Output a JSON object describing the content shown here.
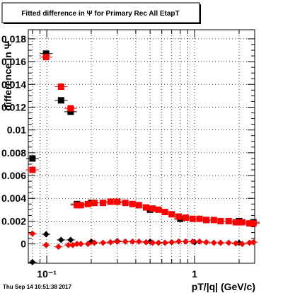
{
  "chart_data": {
    "type": "scatter",
    "title": "Fitted difference in Ψ  for Primary Rec All EtapT",
    "xlabel": "pT/|q| (GeV/c)",
    "ylabel": "difference in Ψ",
    "x_scale": "log",
    "xlim": [
      0.075,
      2.55
    ],
    "ylim": [
      -0.0017,
      0.0188
    ],
    "grid": true,
    "x_tick_labels": [
      {
        "value": 0.1,
        "label": "10⁻¹"
      },
      {
        "value": 1,
        "label": "1"
      }
    ],
    "y_tick_labels": [
      {
        "value": 0,
        "label": "0"
      },
      {
        "value": 0.002,
        "label": "0.002"
      },
      {
        "value": 0.004,
        "label": "0.004"
      },
      {
        "value": 0.006,
        "label": "0.006"
      },
      {
        "value": 0.008,
        "label": "0.008"
      },
      {
        "value": 0.01,
        "label": "0.01"
      },
      {
        "value": 0.012,
        "label": "0.012"
      },
      {
        "value": 0.014,
        "label": "0.014"
      },
      {
        "value": 0.016,
        "label": "0.016"
      },
      {
        "value": 0.018,
        "label": "0.018"
      }
    ],
    "series": [
      {
        "color": "#000000",
        "marker": "square",
        "points": [
          [
            0.08,
            0.0075
          ],
          [
            0.099,
            0.0167
          ],
          [
            0.125,
            0.0126
          ],
          [
            0.145,
            0.0116
          ],
          [
            0.16,
            0.0035
          ],
          [
            0.2,
            0.0036
          ],
          [
            0.3,
            0.0037
          ],
          [
            0.5,
            0.003
          ],
          [
            0.8,
            0.0022
          ],
          [
            1.2,
            0.0021
          ],
          [
            2.0,
            0.002
          ],
          [
            2.5,
            0.0019
          ]
        ]
      },
      {
        "color": "#000000",
        "marker": "diamond",
        "points": [
          [
            0.08,
            -0.0016
          ],
          [
            0.099,
            0.00085
          ],
          [
            0.125,
            0.00035
          ],
          [
            0.145,
            0.00035
          ],
          [
            0.2,
            0.0002
          ],
          [
            0.3,
            0.00025
          ],
          [
            0.5,
            0.0002
          ],
          [
            1.0,
            0.00015
          ],
          [
            2.0,
            0.0001
          ]
        ]
      },
      {
        "color": "#ff0000",
        "marker": "square",
        "points": [
          [
            0.08,
            0.0065
          ],
          [
            0.099,
            0.0164
          ],
          [
            0.125,
            0.0138
          ],
          [
            0.145,
            0.0119
          ],
          [
            0.16,
            0.0034
          ],
          [
            0.17,
            0.0034
          ],
          [
            0.19,
            0.0035
          ],
          [
            0.21,
            0.0036
          ],
          [
            0.24,
            0.0036
          ],
          [
            0.27,
            0.0037
          ],
          [
            0.3,
            0.0037
          ],
          [
            0.34,
            0.0036
          ],
          [
            0.38,
            0.0035
          ],
          [
            0.42,
            0.0034
          ],
          [
            0.47,
            0.0032
          ],
          [
            0.52,
            0.0031
          ],
          [
            0.57,
            0.003
          ],
          [
            0.63,
            0.0028
          ],
          [
            0.7,
            0.0026
          ],
          [
            0.78,
            0.0024
          ],
          [
            0.87,
            0.0023
          ],
          [
            0.97,
            0.0022
          ],
          [
            1.08,
            0.0022
          ],
          [
            1.2,
            0.0021
          ],
          [
            1.35,
            0.0021
          ],
          [
            1.5,
            0.002
          ],
          [
            1.7,
            0.002
          ],
          [
            1.9,
            0.0019
          ],
          [
            2.1,
            0.0019
          ],
          [
            2.35,
            0.0018
          ],
          [
            2.5,
            0.0018
          ]
        ]
      },
      {
        "color": "#ff0000",
        "marker": "diamond",
        "points": [
          [
            0.08,
            0.0009
          ],
          [
            0.099,
            -0.0001
          ],
          [
            0.12,
            -0.00025
          ],
          [
            0.14,
            -0.0001
          ],
          [
            0.15,
            -0.0001
          ],
          [
            0.16,
            0.0
          ],
          [
            0.17,
            0.0
          ],
          [
            0.19,
            0.0
          ],
          [
            0.21,
            0.0001
          ],
          [
            0.24,
            0.0001
          ],
          [
            0.27,
            0.00015
          ],
          [
            0.3,
            0.0002
          ],
          [
            0.34,
            0.0002
          ],
          [
            0.38,
            0.0002
          ],
          [
            0.42,
            0.0002
          ],
          [
            0.47,
            0.00015
          ],
          [
            0.52,
            0.0001
          ],
          [
            0.57,
            0.0001
          ],
          [
            0.63,
            0.0001
          ],
          [
            0.7,
            0.00015
          ],
          [
            0.78,
            0.0002
          ],
          [
            0.87,
            0.0002
          ],
          [
            0.97,
            0.0002
          ],
          [
            1.08,
            0.0002
          ],
          [
            1.2,
            0.00015
          ],
          [
            1.35,
            0.0001
          ],
          [
            1.5,
            0.0001
          ],
          [
            1.7,
            0.0001
          ],
          [
            1.9,
            5e-05
          ],
          [
            2.1,
            0.0
          ],
          [
            2.35,
            0.0001
          ],
          [
            2.5,
            0.00015
          ]
        ]
      }
    ]
  },
  "footer": {
    "timestamp": "Thu Sep 14 10:51:38 2017"
  }
}
